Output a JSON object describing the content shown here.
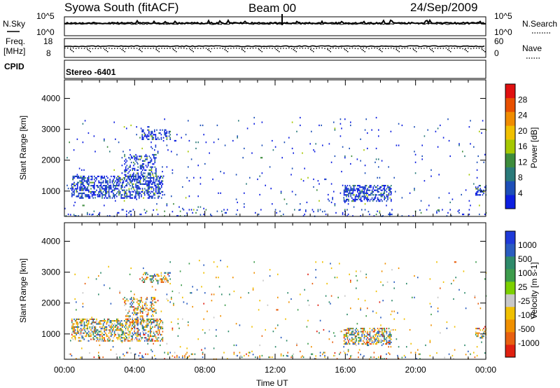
{
  "header": {
    "station": "Syowa South (fitACF)",
    "beam": "Beam 00",
    "date": "24/Sep/2009",
    "cpid": "Stereo -6401"
  },
  "panels": {
    "nsky": {
      "label": "N.Sky",
      "ticks": [
        "10^5",
        "10^0"
      ]
    },
    "nsearch": {
      "label": "N.Search",
      "ticks": [
        "10^5",
        "10^0"
      ]
    },
    "freq": {
      "label_top": "Freq.",
      "label_bottom": "[MHz]",
      "ticks": [
        "18",
        "8"
      ]
    },
    "nave": {
      "label": "Nave",
      "ticks": [
        "60",
        "0"
      ]
    },
    "cpid_label": "CPID"
  },
  "chart_data": [
    {
      "type": "heatmap",
      "name": "Power",
      "ylabel": "Slant Range [km]",
      "xlim": [
        0,
        24
      ],
      "ylim": [
        180,
        4600
      ],
      "y_ticks": [
        1000,
        2000,
        3000,
        4000
      ],
      "y_tick_labels": [
        "1000",
        "2000",
        "3000",
        "4000"
      ],
      "colorbar": {
        "label": "Power [dB]",
        "tick_labels": [
          "4",
          "8",
          "12",
          "16",
          "20",
          "24",
          "28"
        ],
        "colors": [
          "#0d1fe0",
          "#1d4fb8",
          "#2a7a7a",
          "#3d8c3c",
          "#a6c800",
          "#f0c000",
          "#f08c00",
          "#e85000",
          "#e01010"
        ]
      },
      "scatter_regions": [
        {
          "t": [
            0.4,
            5.6
          ],
          "r": [
            800,
            1500
          ],
          "density": 0.5
        },
        {
          "t": [
            3.4,
            5.2
          ],
          "r": [
            1400,
            2200
          ],
          "density": 0.35
        },
        {
          "t": [
            4.4,
            6.0
          ],
          "r": [
            2700,
            3000
          ],
          "density": 0.4
        },
        {
          "t": [
            15.9,
            18.6
          ],
          "r": [
            700,
            1200
          ],
          "density": 0.5
        },
        {
          "t": [
            23.4,
            24.0
          ],
          "r": [
            900,
            1200
          ],
          "density": 0.5
        },
        {
          "t": [
            0.0,
            24.0
          ],
          "r": [
            200,
            3400
          ],
          "density": 0.015
        },
        {
          "t": [
            0.0,
            24.0
          ],
          "r": [
            180,
            420
          ],
          "density": 0.06
        }
      ]
    },
    {
      "type": "heatmap",
      "name": "Velocity",
      "xlabel": "Time UT",
      "ylabel": "Slant Range [km]",
      "xlim": [
        0,
        24
      ],
      "ylim": [
        180,
        4600
      ],
      "x_ticks": [
        0,
        4,
        8,
        12,
        16,
        20,
        24
      ],
      "x_tick_labels": [
        "00:00",
        "04:00",
        "08:00",
        "12:00",
        "16:00",
        "20:00",
        "00:00"
      ],
      "y_ticks": [
        1000,
        2000,
        3000,
        4000
      ],
      "y_tick_labels": [
        "1000",
        "2000",
        "3000",
        "4000"
      ],
      "colorbar": {
        "label": "Velocity [m s-1]",
        "tick_labels": [
          "1000",
          "500",
          "100",
          "25",
          "-25",
          "-100",
          "-500",
          "-1000"
        ],
        "colors": [
          "#1f3ad8",
          "#2a5cc0",
          "#2e8a6a",
          "#3d9c4c",
          "#7cd000",
          "#c8c8c8",
          "#f0c000",
          "#f09000",
          "#e86010",
          "#e02010"
        ]
      },
      "scatter_regions": [
        {
          "t": [
            0.4,
            5.6
          ],
          "r": [
            800,
            1500
          ],
          "density": 0.5
        },
        {
          "t": [
            3.4,
            5.2
          ],
          "r": [
            1400,
            2200
          ],
          "density": 0.35
        },
        {
          "t": [
            4.4,
            6.0
          ],
          "r": [
            2700,
            3000
          ],
          "density": 0.4
        },
        {
          "t": [
            15.9,
            18.6
          ],
          "r": [
            700,
            1200
          ],
          "density": 0.5
        },
        {
          "t": [
            23.4,
            24.0
          ],
          "r": [
            900,
            1200
          ],
          "density": 0.5
        },
        {
          "t": [
            0.0,
            24.0
          ],
          "r": [
            200,
            3400
          ],
          "density": 0.015
        },
        {
          "t": [
            0.0,
            24.0
          ],
          "r": [
            180,
            420
          ],
          "density": 0.06
        }
      ]
    }
  ]
}
